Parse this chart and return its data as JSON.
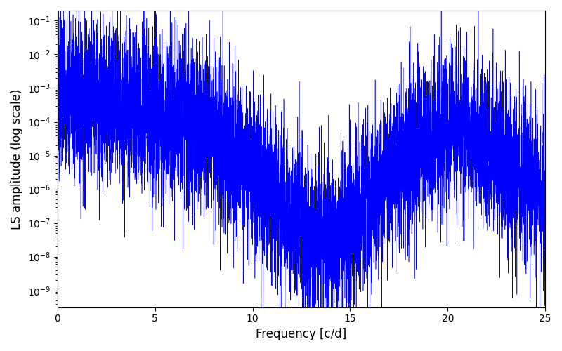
{
  "xlabel": "Frequency [c/d]",
  "ylabel": "LS amplitude (log scale)",
  "line_color": "#0000ff",
  "background_color": "#ffffff",
  "xlim": [
    0,
    25
  ],
  "ylim_log": [
    -9.5,
    -0.7
  ],
  "freq_min": 0.0,
  "freq_max": 25.0,
  "n_points": 8000,
  "seed": 7,
  "figsize": [
    8.0,
    5.0
  ],
  "dpi": 100
}
